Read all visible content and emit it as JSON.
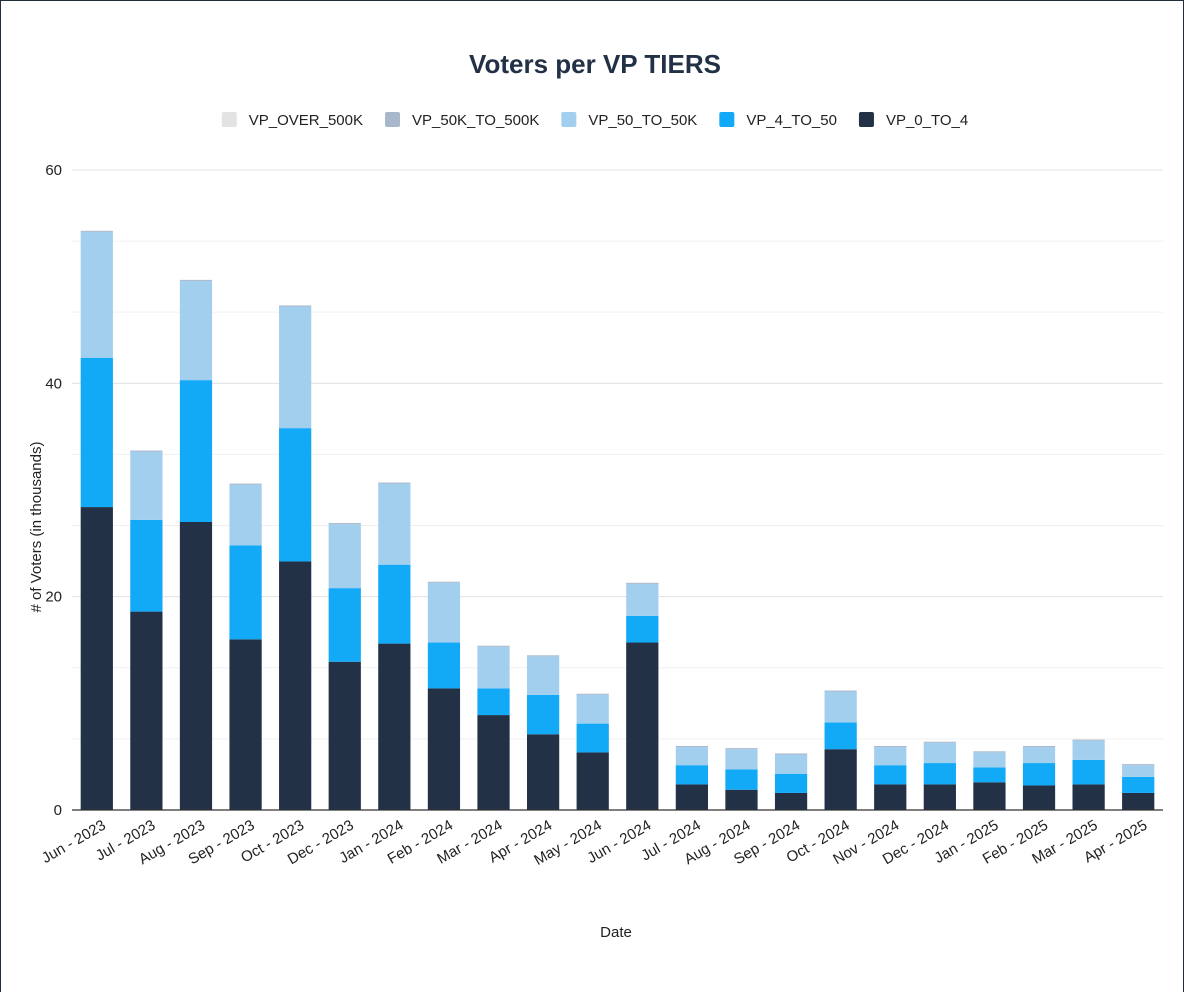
{
  "chart_data": {
    "type": "bar",
    "stacked": true,
    "title": "Voters per VP TIERS",
    "xlabel": "Date",
    "ylabel": "# of Voters (in thousands)",
    "ylim": [
      0,
      60
    ],
    "yticks": [
      0,
      20,
      40,
      60
    ],
    "grid": true,
    "legend_position": "top-center",
    "categories": [
      "Jun - 2023",
      "Jul - 2023",
      "Aug - 2023",
      "Sep - 2023",
      "Oct - 2023",
      "Dec - 2023",
      "Jan - 2024",
      "Feb - 2024",
      "Mar - 2024",
      "Apr - 2024",
      "May - 2024",
      "Jun - 2024",
      "Jul - 2024",
      "Aug - 2024",
      "Sep - 2024",
      "Oct - 2024",
      "Nov - 2024",
      "Dec - 2024",
      "Jan - 2025",
      "Feb - 2025",
      "Mar - 2025",
      "Apr - 2025"
    ],
    "series": [
      {
        "name": "VP_0_TO_4",
        "color": "#223146",
        "values": [
          28.4,
          18.6,
          27.0,
          16.0,
          23.3,
          13.9,
          15.6,
          11.4,
          8.9,
          7.1,
          5.4,
          15.7,
          2.4,
          1.9,
          1.6,
          5.7,
          2.4,
          2.4,
          2.6,
          2.3,
          2.4,
          1.6
        ]
      },
      {
        "name": "VP_4_TO_50",
        "color": "#12a9f7",
        "values": [
          14.0,
          8.6,
          13.3,
          8.8,
          12.5,
          6.9,
          7.4,
          4.3,
          2.5,
          3.7,
          2.7,
          2.5,
          1.8,
          1.9,
          1.8,
          2.5,
          1.8,
          2.0,
          1.4,
          2.1,
          2.3,
          1.5
        ]
      },
      {
        "name": "VP_50_TO_50K",
        "color": "#a3cfee",
        "values": [
          11.8,
          6.4,
          9.3,
          5.7,
          11.4,
          6.0,
          7.6,
          5.6,
          3.9,
          3.6,
          2.7,
          3.0,
          1.7,
          1.9,
          1.8,
          2.9,
          1.7,
          1.9,
          1.4,
          1.5,
          1.8,
          1.1
        ]
      },
      {
        "name": "VP_50K_TO_500K",
        "color": "#a9b7cb",
        "values": [
          0.1,
          0.1,
          0.1,
          0.1,
          0.1,
          0.1,
          0.1,
          0.1,
          0.1,
          0.1,
          0.1,
          0.1,
          0.1,
          0.1,
          0.1,
          0.1,
          0.1,
          0.1,
          0.1,
          0.1,
          0.1,
          0.1
        ]
      },
      {
        "name": "VP_OVER_500K",
        "color": "#e3e3e3",
        "values": [
          0,
          0,
          0,
          0,
          0,
          0,
          0,
          0,
          0,
          0,
          0,
          0,
          0,
          0,
          0,
          0,
          0,
          0,
          0,
          0,
          0,
          0
        ]
      }
    ],
    "legend_order": [
      "VP_OVER_500K",
      "VP_50K_TO_500K",
      "VP_50_TO_50K",
      "VP_4_TO_50",
      "VP_0_TO_4"
    ]
  }
}
